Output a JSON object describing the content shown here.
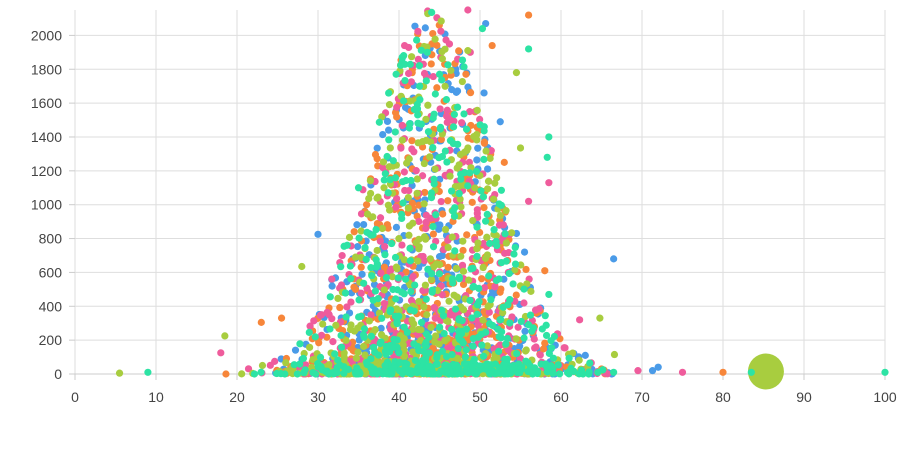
{
  "chart_data": {
    "type": "scatter",
    "title": "",
    "xlabel": "",
    "ylabel": "",
    "xlim": [
      0,
      100
    ],
    "ylim": [
      0,
      2150
    ],
    "x_ticks": [
      "0",
      "10",
      "20",
      "30",
      "40",
      "50",
      "60",
      "70",
      "80",
      "90",
      "100"
    ],
    "y_ticks": [
      "0",
      "200",
      "400",
      "600",
      "800",
      "1000",
      "1200",
      "1400",
      "1600",
      "1800",
      "2000"
    ],
    "grid": true,
    "legend": "none",
    "colors": [
      "#4a9be8",
      "#f7863a",
      "#ef5c9c",
      "#a8cd3f",
      "#2de3a4"
    ],
    "distribution": {
      "x_center": 44,
      "x_spread": 7.5,
      "x_min": 5,
      "x_max": 67,
      "y_peak": 2150,
      "points_per_series": 520
    },
    "series": [
      {
        "color": "#4a9be8",
        "points": [
          {
            "x": 50.7,
            "y": 2070
          },
          {
            "x": 50.5,
            "y": 1660
          },
          {
            "x": 47,
            "y": 1800
          },
          {
            "x": 43.5,
            "y": 1770
          },
          {
            "x": 52.5,
            "y": 1490
          },
          {
            "x": 30,
            "y": 825
          },
          {
            "x": 66.5,
            "y": 680
          },
          {
            "x": 72,
            "y": 40
          },
          {
            "x": 71.3,
            "y": 20
          },
          {
            "x": 63,
            "y": 110
          },
          {
            "x": 55.5,
            "y": 720
          },
          {
            "x": 54.5,
            "y": 830
          }
        ]
      },
      {
        "color": "#f7863a",
        "points": [
          {
            "x": 56,
            "y": 2120
          },
          {
            "x": 51.5,
            "y": 1940
          },
          {
            "x": 42,
            "y": 1620
          },
          {
            "x": 80,
            "y": 10
          },
          {
            "x": 58,
            "y": 610
          },
          {
            "x": 53,
            "y": 1250
          },
          {
            "x": 36,
            "y": 1000
          },
          {
            "x": 23,
            "y": 305
          },
          {
            "x": 65,
            "y": 30
          },
          {
            "x": 25.5,
            "y": 330
          }
        ]
      },
      {
        "color": "#ef5c9c",
        "points": [
          {
            "x": 48.5,
            "y": 2150
          },
          {
            "x": 43,
            "y": 1830
          },
          {
            "x": 48.8,
            "y": 1900
          },
          {
            "x": 58.5,
            "y": 1130
          },
          {
            "x": 56,
            "y": 1020
          },
          {
            "x": 62.3,
            "y": 320
          },
          {
            "x": 69.5,
            "y": 20
          },
          {
            "x": 75,
            "y": 10
          },
          {
            "x": 38,
            "y": 1220
          },
          {
            "x": 18,
            "y": 125
          }
        ]
      },
      {
        "color": "#a8cd3f",
        "points": [
          {
            "x": 48.5,
            "y": 1910
          },
          {
            "x": 54.5,
            "y": 1780
          },
          {
            "x": 28,
            "y": 635
          },
          {
            "x": 64.8,
            "y": 330
          },
          {
            "x": 66.6,
            "y": 115
          },
          {
            "x": 18.5,
            "y": 225
          },
          {
            "x": 5.5,
            "y": 5
          },
          {
            "x": 55,
            "y": 1335
          },
          {
            "x": 85.3,
            "y": 15,
            "size": "large"
          }
        ]
      },
      {
        "color": "#2de3a4",
        "points": [
          {
            "x": 50.3,
            "y": 2040
          },
          {
            "x": 56,
            "y": 1920
          },
          {
            "x": 43.5,
            "y": 1900
          },
          {
            "x": 58.5,
            "y": 1400
          },
          {
            "x": 58.3,
            "y": 1280
          },
          {
            "x": 35,
            "y": 1100
          },
          {
            "x": 100,
            "y": 10
          },
          {
            "x": 83.5,
            "y": 10
          },
          {
            "x": 66.5,
            "y": 10
          },
          {
            "x": 58.5,
            "y": 470
          },
          {
            "x": 9,
            "y": 10
          }
        ]
      }
    ]
  }
}
